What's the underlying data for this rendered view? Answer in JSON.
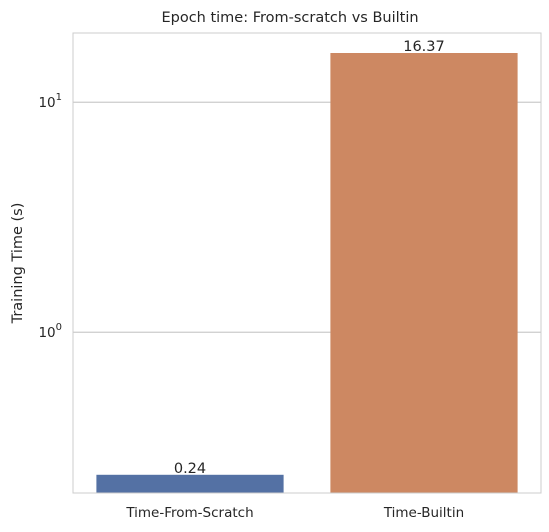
{
  "chart_data": {
    "type": "bar",
    "title": "Epoch time: From-scratch vs Builtin",
    "xlabel": "",
    "ylabel": "Training Time (s)",
    "yscale": "log",
    "ylim": [
      0.2,
      20
    ],
    "categories": [
      "Time-From-Scratch",
      "Time-Builtin"
    ],
    "values": [
      0.24,
      16.37
    ],
    "data_labels": [
      "0.24",
      "16.37"
    ],
    "colors": [
      "#5471a4",
      "#cd8862"
    ],
    "yticks": [
      {
        "value": 1,
        "base": "10",
        "exp": "0"
      },
      {
        "value": 10,
        "base": "10",
        "exp": "1"
      }
    ],
    "grid": "horizontal",
    "legend": "none"
  }
}
